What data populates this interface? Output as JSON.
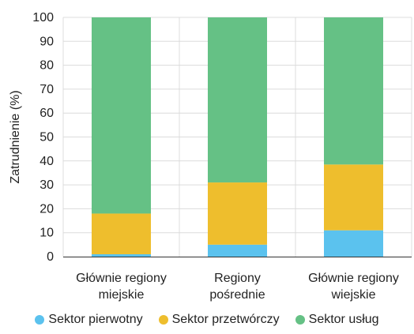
{
  "chart_data": {
    "type": "bar",
    "stacked": true,
    "percent_stacked": true,
    "categories": [
      "Głównie regiony miejskie",
      "Regiony pośrednie",
      "Głównie regiony wiejskie"
    ],
    "category_lines": [
      [
        "Głównie regiony",
        "miejskie"
      ],
      [
        "Regiony",
        "pośrednie"
      ],
      [
        "Głównie regiony",
        "wiejskie"
      ]
    ],
    "series": [
      {
        "name": "Sektor pierwotny",
        "color": "#5bc2ee",
        "values": [
          1,
          5,
          11
        ]
      },
      {
        "name": "Sektor przetwórczy",
        "color": "#eebe2d",
        "values": [
          17,
          26,
          27.5
        ]
      },
      {
        "name": "Sektor usług",
        "color": "#65c185",
        "values": [
          82,
          69,
          61.5
        ]
      }
    ],
    "xlabel": "",
    "ylabel": "Zatrudnienie (%)",
    "ylim": [
      0,
      100
    ],
    "yticks": [
      0,
      10,
      20,
      30,
      40,
      50,
      60,
      70,
      80,
      90,
      100
    ],
    "grid": true,
    "legend_position": "bottom"
  }
}
